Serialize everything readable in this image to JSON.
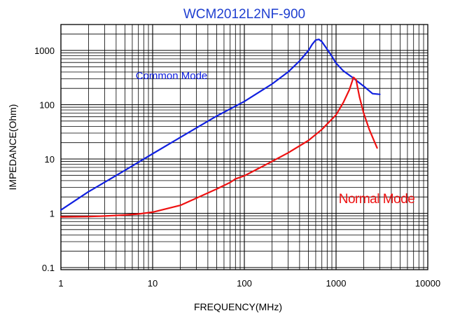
{
  "chart_data": {
    "type": "line",
    "title": "WCM2012L2NF-900",
    "xlabel": "FREQUENCY(MHz)",
    "ylabel": "IMPEDANCE(Ohm)",
    "x_scale": "log",
    "y_scale": "log",
    "xlim": [
      1,
      10000
    ],
    "ylim": [
      0.1,
      3500
    ],
    "grid": true,
    "x_ticks": [
      {
        "value": 1,
        "label": "1"
      },
      {
        "value": 10,
        "label": "10"
      },
      {
        "value": 100,
        "label": "100"
      },
      {
        "value": 1000,
        "label": "1000"
      },
      {
        "value": 10000,
        "label": "10000"
      }
    ],
    "y_ticks": [
      {
        "value": 0.1,
        "label": "0.1"
      },
      {
        "value": 1,
        "label": "1"
      },
      {
        "value": 10,
        "label": "10"
      },
      {
        "value": 100,
        "label": "100"
      },
      {
        "value": 1000,
        "label": "1000"
      }
    ],
    "series": [
      {
        "name": "Common Mode",
        "color": "#1020e0",
        "x": [
          1,
          2,
          5,
          10,
          20,
          50,
          100,
          200,
          300,
          400,
          500,
          550,
          600,
          650,
          700,
          800,
          900,
          1000,
          1200,
          1500,
          2000,
          2500,
          3000
        ],
        "y": [
          1.15,
          2.5,
          6.2,
          12.5,
          25,
          62,
          115,
          240,
          400,
          640,
          1000,
          1300,
          1550,
          1600,
          1450,
          1050,
          780,
          580,
          420,
          320,
          220,
          160,
          155
        ]
      },
      {
        "name": "Normal Mode",
        "color": "#ee1111",
        "x": [
          1,
          2,
          3,
          5,
          7,
          10,
          20,
          30,
          50,
          70,
          80,
          100,
          150,
          200,
          300,
          500,
          700,
          1000,
          1200,
          1400,
          1550,
          1650,
          1800,
          2000,
          2300,
          2800
        ],
        "y": [
          0.86,
          0.87,
          0.89,
          0.93,
          0.97,
          1.05,
          1.4,
          1.9,
          2.8,
          3.7,
          4.3,
          4.9,
          7,
          9,
          13,
          22,
          35,
          65,
          110,
          190,
          320,
          290,
          140,
          70,
          35,
          16
        ]
      }
    ]
  }
}
